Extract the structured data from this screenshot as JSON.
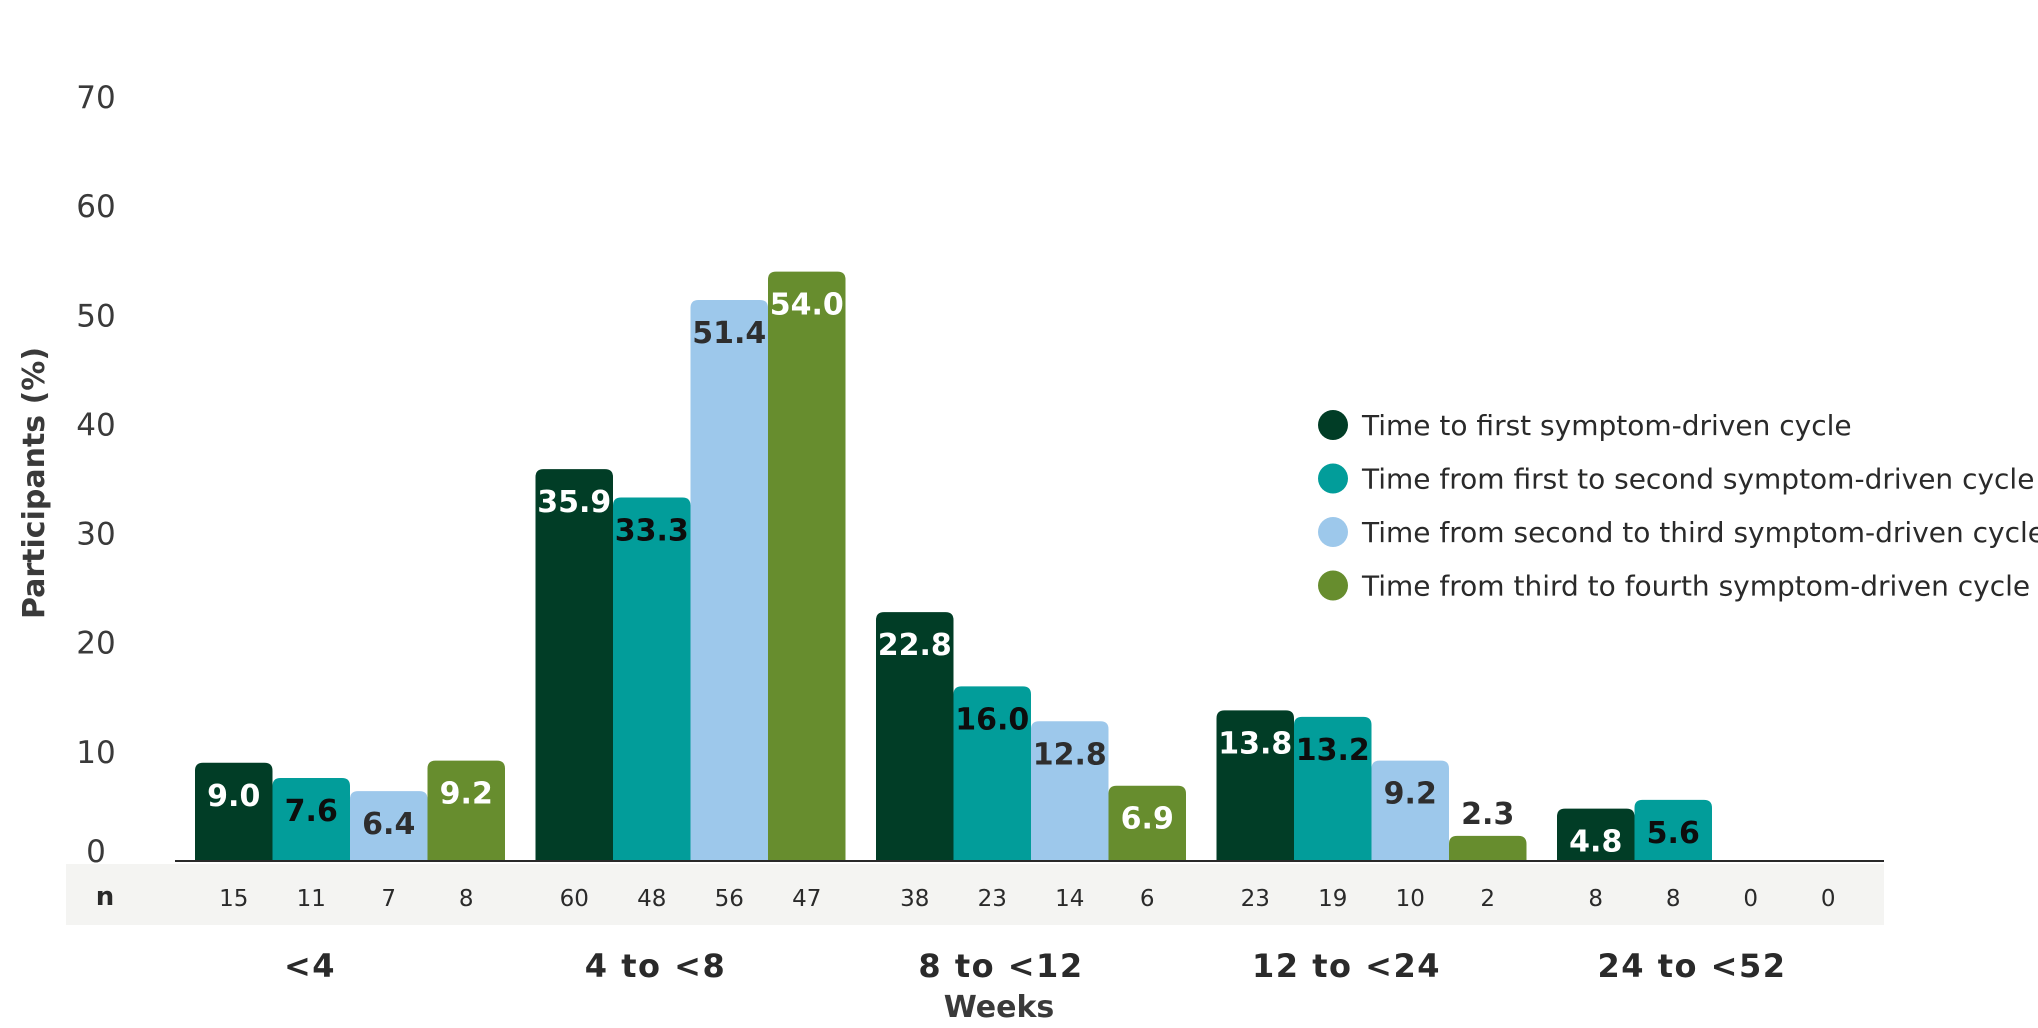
{
  "chart_data": {
    "type": "bar",
    "title": "",
    "ylabel": "Participants (%)",
    "xlabel": "Weeks",
    "ylim": [
      0,
      70
    ],
    "yticks": [
      0,
      10,
      20,
      30,
      40,
      50,
      60,
      70
    ],
    "categories": [
      "<4",
      "4 to <8",
      "8 to <12",
      "12 to <24",
      "24 to <52"
    ],
    "n_label": "n",
    "grid": false,
    "legend_position": "right",
    "series": [
      {
        "name": "Time to first symptom-driven cycle",
        "color": "#013d26",
        "label_color": "#ffffff",
        "values": [
          9.0,
          35.9,
          22.8,
          13.8,
          4.8
        ],
        "labels": [
          "9.0",
          "35.9",
          "22.8",
          "13.8",
          "4.8"
        ],
        "n": [
          "15",
          "60",
          "38",
          "23",
          "8"
        ]
      },
      {
        "name": "Time from first to second symptom-driven cycle",
        "color": "#029d9a",
        "label_color": "#0d0d0d",
        "values": [
          7.6,
          33.3,
          16.0,
          13.2,
          5.6
        ],
        "labels": [
          "7.6",
          "33.3",
          "16.0",
          "13.2",
          "5.6"
        ],
        "n": [
          "11",
          "48",
          "23",
          "19",
          "8"
        ]
      },
      {
        "name": "Time from second to third symptom-driven cycle",
        "color": "#9dc8eb",
        "label_color": "#2e2e2e",
        "values": [
          6.4,
          51.4,
          12.8,
          9.2,
          0
        ],
        "labels": [
          "6.4",
          "51.4",
          "12.8",
          "9.2",
          ""
        ],
        "n": [
          "7",
          "56",
          "14",
          "10",
          "0"
        ]
      },
      {
        "name": "Time from third to fourth symptom-driven cycle",
        "color": "#678d2e",
        "label_color": "#ffffff",
        "values": [
          9.2,
          54.0,
          6.9,
          2.3,
          0
        ],
        "labels": [
          "9.2",
          "54.0",
          "6.9",
          "2.3",
          ""
        ],
        "n": [
          "8",
          "47",
          "6",
          "2",
          "0"
        ]
      }
    ]
  }
}
